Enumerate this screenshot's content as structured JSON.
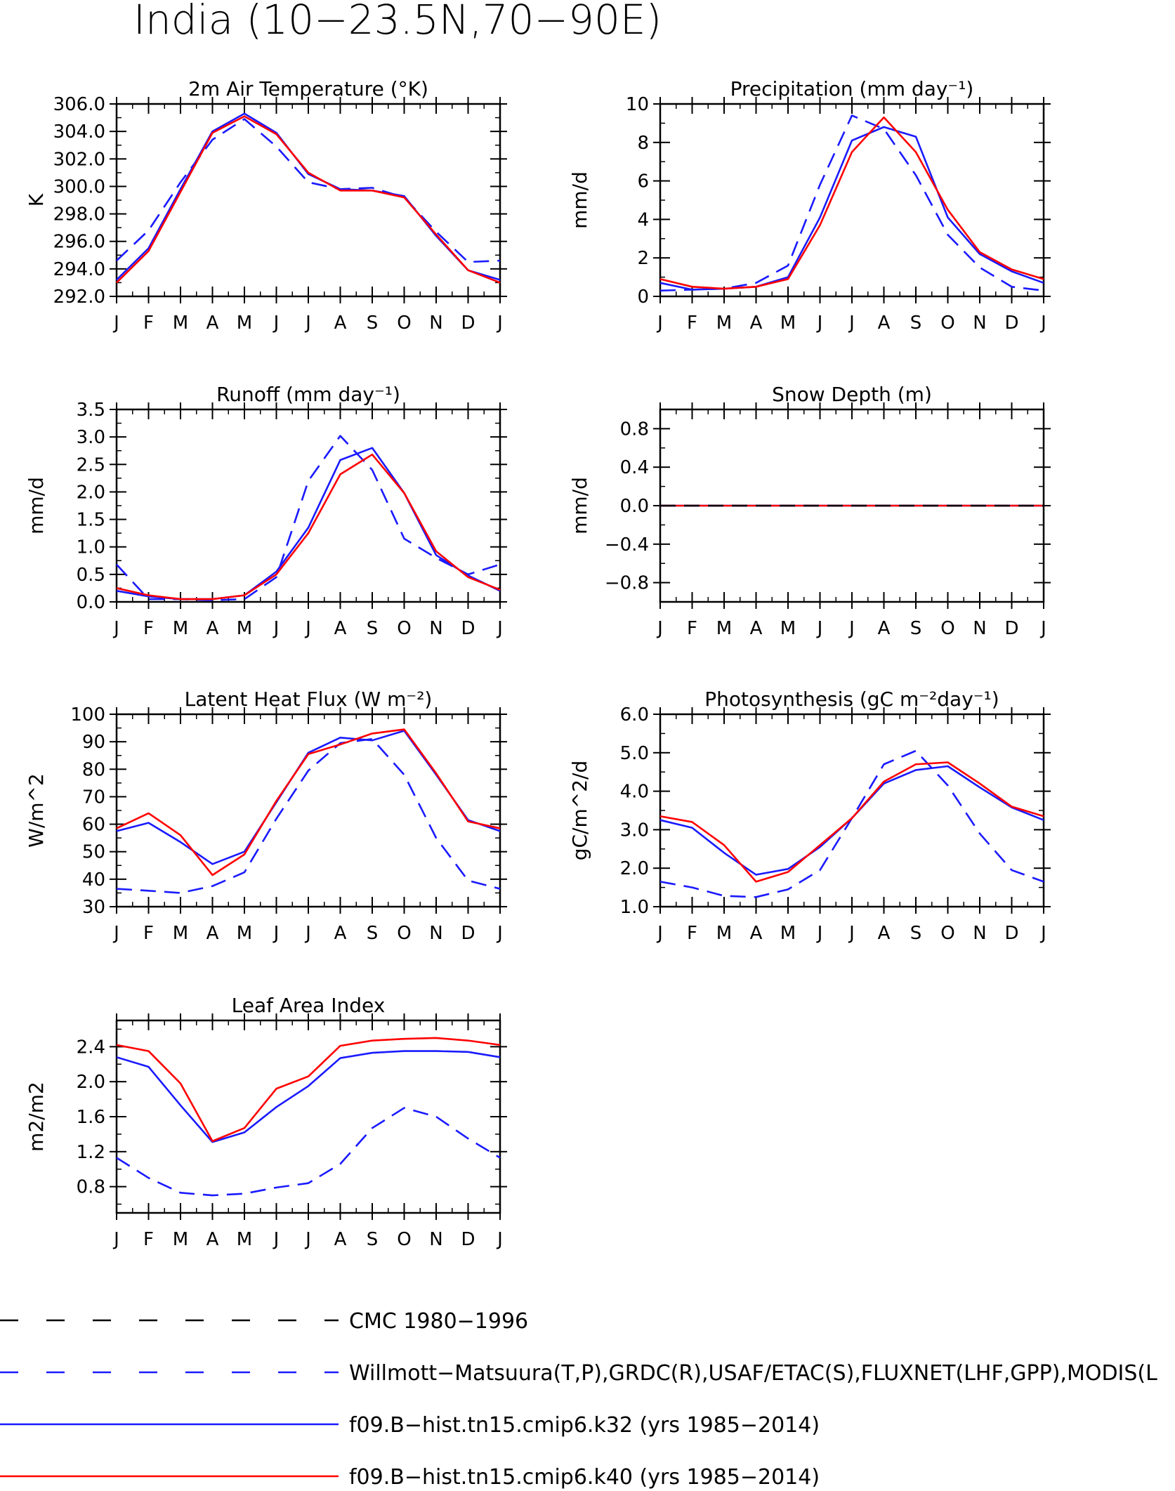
{
  "figure": {
    "title": "India (10−23.5N,70−90E)"
  },
  "colors": {
    "obs_cmc": "#000000",
    "obs_other": "#1a1aff",
    "k32": "#1a1aff",
    "k40": "#ff0000"
  },
  "legend": [
    {
      "label": "CMC 1980−1996",
      "color": "#000000",
      "dash": true
    },
    {
      "label": "Willmott−Matsuura(T,P),GRDC(R),USAF/ETAC(S),FLUXNET(LHF,GPP),MODIS(L",
      "color": "#1a1aff",
      "dash": true
    },
    {
      "label": "f09.B−hist.tn15.cmip6.k32 (yrs 1985−2014)",
      "color": "#1a1aff",
      "dash": false
    },
    {
      "label": "f09.B−hist.tn15.cmip6.k40 (yrs 1985−2014)",
      "color": "#ff0000",
      "dash": false
    }
  ],
  "chart_data": [
    {
      "type": "line",
      "title": "2m Air Temperature (°K)",
      "ylabel": "K",
      "ylim": [
        292,
        306
      ],
      "yticks": [
        "292.0",
        "294.0",
        "296.0",
        "298.0",
        "300.0",
        "302.0",
        "304.0",
        "306.0"
      ],
      "ytick_values": [
        292,
        294,
        296,
        298,
        300,
        302,
        304,
        306
      ],
      "categories": [
        "J",
        "F",
        "M",
        "A",
        "M",
        "J",
        "J",
        "A",
        "S",
        "O",
        "N",
        "D",
        "J"
      ],
      "series": [
        {
          "role": "obs",
          "values": [
            294.6,
            296.8,
            300.3,
            303.4,
            304.9,
            302.9,
            300.3,
            299.8,
            299.9,
            299.2,
            296.7,
            294.5,
            294.6
          ]
        },
        {
          "role": "k32",
          "values": [
            293.2,
            295.5,
            299.8,
            304.0,
            305.3,
            303.9,
            300.9,
            299.8,
            299.7,
            299.3,
            296.4,
            293.9,
            293.2
          ]
        },
        {
          "role": "k40",
          "values": [
            293.0,
            295.3,
            299.6,
            303.9,
            305.1,
            303.8,
            301.0,
            299.7,
            299.7,
            299.2,
            296.5,
            293.9,
            293.0
          ]
        }
      ]
    },
    {
      "type": "line",
      "title": "Precipitation (mm day⁻¹)",
      "ylabel": "mm/d",
      "ylim": [
        0,
        10
      ],
      "yticks": [
        "0",
        "2",
        "4",
        "6",
        "8",
        "10"
      ],
      "ytick_values": [
        0,
        2,
        4,
        6,
        8,
        10
      ],
      "categories": [
        "J",
        "F",
        "M",
        "A",
        "M",
        "J",
        "J",
        "A",
        "S",
        "O",
        "N",
        "D",
        "J"
      ],
      "series": [
        {
          "role": "obs",
          "values": [
            0.3,
            0.35,
            0.4,
            0.7,
            1.6,
            5.8,
            9.4,
            8.7,
            6.3,
            3.2,
            1.5,
            0.5,
            0.3
          ]
        },
        {
          "role": "k32",
          "values": [
            0.7,
            0.35,
            0.4,
            0.5,
            1.0,
            4.1,
            8.1,
            8.8,
            8.3,
            4.1,
            2.2,
            1.3,
            0.7
          ]
        },
        {
          "role": "k40",
          "values": [
            0.9,
            0.5,
            0.4,
            0.5,
            0.9,
            3.7,
            7.5,
            9.3,
            7.5,
            4.5,
            2.3,
            1.4,
            0.9
          ]
        }
      ]
    },
    {
      "type": "line",
      "title": "Runoff (mm day⁻¹)",
      "ylabel": "mm/d",
      "ylim": [
        0,
        3.5
      ],
      "yticks": [
        "0.0",
        "0.5",
        "1.0",
        "1.5",
        "2.0",
        "2.5",
        "3.0",
        "3.5"
      ],
      "ytick_values": [
        0,
        0.5,
        1,
        1.5,
        2,
        2.5,
        3,
        3.5
      ],
      "categories": [
        "J",
        "F",
        "M",
        "A",
        "M",
        "J",
        "J",
        "A",
        "S",
        "O",
        "N",
        "D",
        "J"
      ],
      "series": [
        {
          "role": "obs",
          "values": [
            0.68,
            0.05,
            0.05,
            0.03,
            0.05,
            0.45,
            2.2,
            3.02,
            2.4,
            1.15,
            0.8,
            0.5,
            0.68
          ]
        },
        {
          "role": "k32",
          "values": [
            0.2,
            0.1,
            0.05,
            0.05,
            0.12,
            0.55,
            1.35,
            2.58,
            2.8,
            1.98,
            0.85,
            0.48,
            0.2
          ]
        },
        {
          "role": "k40",
          "values": [
            0.25,
            0.12,
            0.05,
            0.05,
            0.12,
            0.5,
            1.25,
            2.32,
            2.68,
            1.98,
            0.92,
            0.45,
            0.22
          ]
        }
      ]
    },
    {
      "type": "line",
      "title": "Snow Depth (m)",
      "ylabel": "mm/d",
      "ylim": [
        -1.0,
        1.0
      ],
      "yticks": [
        "−0.8",
        "−0.4",
        "0.0",
        "0.4",
        "0.8"
      ],
      "ytick_values": [
        -0.8,
        -0.4,
        0,
        0.4,
        0.8
      ],
      "categories": [
        "J",
        "F",
        "M",
        "A",
        "M",
        "J",
        "J",
        "A",
        "S",
        "O",
        "N",
        "D",
        "J"
      ],
      "series": [
        {
          "role": "obs",
          "values": [
            0,
            0,
            0,
            0,
            0,
            0,
            0,
            0,
            0,
            0,
            0,
            0,
            0
          ]
        },
        {
          "role": "k32",
          "values": [
            0,
            0,
            0,
            0,
            0,
            0,
            0,
            0,
            0,
            0,
            0,
            0,
            0
          ]
        },
        {
          "role": "k40",
          "values": [
            0,
            0,
            0,
            0,
            0,
            0,
            0,
            0,
            0,
            0,
            0,
            0,
            0
          ]
        },
        {
          "role": "cmc",
          "values": [
            0,
            0,
            0,
            0,
            0,
            0,
            0,
            0,
            0,
            0,
            0,
            0,
            0
          ]
        }
      ]
    },
    {
      "type": "line",
      "title": "Latent Heat Flux (W m⁻²)",
      "ylabel": "W/m^2",
      "ylim": [
        30,
        100
      ],
      "yticks": [
        "30",
        "40",
        "50",
        "60",
        "70",
        "80",
        "90",
        "100"
      ],
      "ytick_values": [
        30,
        40,
        50,
        60,
        70,
        80,
        90,
        100
      ],
      "categories": [
        "J",
        "F",
        "M",
        "A",
        "M",
        "J",
        "J",
        "A",
        "S",
        "O",
        "N",
        "D",
        "J"
      ],
      "series": [
        {
          "role": "obs",
          "values": [
            36.5,
            35.8,
            35.0,
            37.5,
            42.5,
            62.0,
            79.5,
            89.5,
            91.0,
            78.0,
            55.0,
            39.5,
            36.5
          ]
        },
        {
          "role": "k32",
          "values": [
            57.5,
            60.5,
            53.5,
            45.5,
            50.0,
            68.0,
            86.0,
            91.5,
            90.5,
            94.0,
            78.0,
            61.5,
            57.5
          ]
        },
        {
          "role": "k40",
          "values": [
            58.5,
            64.0,
            56.0,
            41.5,
            49.0,
            68.5,
            85.5,
            89.0,
            93.0,
            94.5,
            78.5,
            61.0,
            58.5
          ]
        }
      ]
    },
    {
      "type": "line",
      "title": "Photosynthesis (gC m⁻²day⁻¹)",
      "ylabel": "gC/m^2/d",
      "ylim": [
        1.0,
        6.0
      ],
      "yticks": [
        "1.0",
        "2.0",
        "3.0",
        "4.0",
        "5.0",
        "6.0"
      ],
      "ytick_values": [
        1,
        2,
        3,
        4,
        5,
        6
      ],
      "categories": [
        "J",
        "F",
        "M",
        "A",
        "M",
        "J",
        "J",
        "A",
        "S",
        "O",
        "N",
        "D",
        "J"
      ],
      "series": [
        {
          "role": "obs",
          "values": [
            1.65,
            1.5,
            1.28,
            1.25,
            1.45,
            1.95,
            3.3,
            4.7,
            5.05,
            4.15,
            2.9,
            1.95,
            1.65
          ]
        },
        {
          "role": "k32",
          "values": [
            3.25,
            3.05,
            2.4,
            1.83,
            1.98,
            2.55,
            3.3,
            4.2,
            4.55,
            4.65,
            4.1,
            3.58,
            3.25
          ]
        },
        {
          "role": "k40",
          "values": [
            3.35,
            3.2,
            2.6,
            1.65,
            1.9,
            2.6,
            3.3,
            4.25,
            4.7,
            4.75,
            4.2,
            3.6,
            3.35
          ]
        }
      ]
    },
    {
      "type": "line",
      "title": "Leaf Area Index",
      "ylabel": "m2/m2",
      "ylim": [
        0.5,
        2.7
      ],
      "yticks": [
        "0.8",
        "1.2",
        "1.6",
        "2.0",
        "2.4"
      ],
      "ytick_values": [
        0.8,
        1.2,
        1.6,
        2.0,
        2.4
      ],
      "categories": [
        "J",
        "F",
        "M",
        "A",
        "M",
        "J",
        "J",
        "A",
        "S",
        "O",
        "N",
        "D",
        "J"
      ],
      "series": [
        {
          "role": "obs",
          "values": [
            1.13,
            0.9,
            0.73,
            0.7,
            0.72,
            0.79,
            0.84,
            1.06,
            1.47,
            1.7,
            1.6,
            1.35,
            1.13
          ]
        },
        {
          "role": "k32",
          "values": [
            2.28,
            2.17,
            1.73,
            1.31,
            1.42,
            1.71,
            1.95,
            2.27,
            2.33,
            2.35,
            2.35,
            2.34,
            2.28
          ]
        },
        {
          "role": "k40",
          "values": [
            2.42,
            2.35,
            1.98,
            1.32,
            1.47,
            1.92,
            2.06,
            2.41,
            2.47,
            2.49,
            2.5,
            2.47,
            2.42
          ]
        }
      ]
    }
  ]
}
